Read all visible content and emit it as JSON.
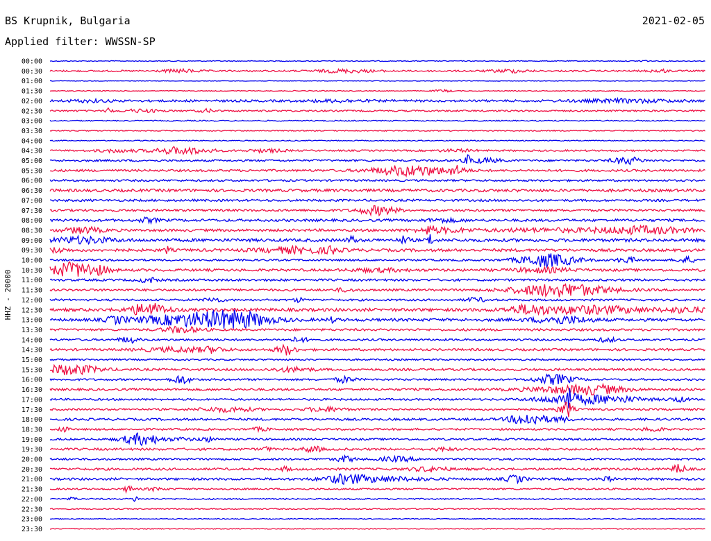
{
  "header": {
    "station": "BS Krupnik, Bulgaria",
    "filter": "Applied filter: WWSSN-SP",
    "date": "2021-02-05"
  },
  "chart_data": {
    "type": "line",
    "subtype": "helicorder",
    "ylabel": "HHZ - 20000",
    "time_labels": [
      "00:00",
      "00:30",
      "01:00",
      "01:30",
      "02:00",
      "02:30",
      "03:00",
      "03:30",
      "04:00",
      "04:30",
      "05:00",
      "05:30",
      "06:00",
      "06:30",
      "07:00",
      "07:30",
      "08:00",
      "08:30",
      "09:00",
      "09:30",
      "10:00",
      "10:30",
      "11:00",
      "11:30",
      "12:00",
      "12:30",
      "13:00",
      "13:30",
      "14:00",
      "14:30",
      "15:00",
      "15:30",
      "16:00",
      "16:30",
      "17:00",
      "17:30",
      "18:00",
      "18:30",
      "19:00",
      "19:30",
      "20:00",
      "20:30",
      "21:00",
      "21:30",
      "22:00",
      "22:30",
      "23:00",
      "23:30"
    ],
    "line_colors": [
      "#0000ee",
      "#ee1144"
    ],
    "noise": [
      0.6,
      1.2,
      0.4,
      0.6,
      1.6,
      1.2,
      0.8,
      0.8,
      0.7,
      1.2,
      1.4,
      1.6,
      1.4,
      2.0,
      1.6,
      1.6,
      1.8,
      1.8,
      2.2,
      2.0,
      1.4,
      1.8,
      1.6,
      1.6,
      1.4,
      2.2,
      2.0,
      1.6,
      1.4,
      1.6,
      1.2,
      1.6,
      1.4,
      1.6,
      1.4,
      1.4,
      1.6,
      1.4,
      1.4,
      1.6,
      1.4,
      1.6,
      1.6,
      1.2,
      1.0,
      0.8,
      0.6,
      0.6
    ],
    "events": [
      [
        [
          0.905,
          4,
          0.003
        ]
      ],
      [
        [
          0.2,
          2,
          0.02
        ],
        [
          0.45,
          2,
          0.03
        ],
        [
          0.7,
          2,
          0.02
        ],
        [
          0.93,
          2,
          0.01
        ]
      ],
      [],
      [
        [
          0.6,
          1.5,
          0.01
        ]
      ],
      [
        [
          0.06,
          1.5,
          0.02
        ],
        [
          0.44,
          1.5,
          0.03
        ],
        [
          0.88,
          2,
          0.05
        ]
      ],
      [
        [
          0.09,
          5,
          0.003
        ],
        [
          0.14,
          2,
          0.02
        ],
        [
          0.24,
          2,
          0.01
        ]
      ],
      [],
      [],
      [],
      [
        [
          0.1,
          2,
          0.02
        ],
        [
          0.2,
          5,
          0.03
        ],
        [
          0.33,
          2,
          0.02
        ],
        [
          0.62,
          1.5,
          0.02
        ]
      ],
      [
        [
          0.64,
          7,
          0.004
        ],
        [
          0.66,
          3,
          0.02
        ],
        [
          0.88,
          5,
          0.015
        ]
      ],
      [
        [
          0.55,
          7,
          0.04
        ],
        [
          0.62,
          5,
          0.01
        ]
      ],
      [],
      [],
      [],
      [
        [
          0.5,
          6,
          0.02
        ]
      ],
      [
        [
          0.15,
          3,
          0.01
        ],
        [
          0.6,
          2,
          0.02
        ]
      ],
      [
        [
          0.05,
          4,
          0.02
        ],
        [
          0.58,
          6,
          0.004
        ],
        [
          0.6,
          3,
          0.03
        ],
        [
          0.75,
          2,
          0.05
        ],
        [
          0.9,
          5,
          0.05
        ]
      ],
      [
        [
          0.05,
          4,
          0.03
        ],
        [
          0.46,
          6,
          0.004
        ],
        [
          0.54,
          5,
          0.005
        ],
        [
          0.58,
          12,
          0.002
        ]
      ],
      [
        [
          0.01,
          3,
          0.01
        ],
        [
          0.18,
          5,
          0.003
        ],
        [
          0.38,
          4,
          0.04
        ],
        [
          0.43,
          4,
          0.005
        ]
      ],
      [
        [
          0.76,
          9,
          0.03
        ],
        [
          0.88,
          4,
          0.01
        ],
        [
          0.97,
          4,
          0.01
        ]
      ],
      [
        [
          0.03,
          10,
          0.02
        ],
        [
          0.07,
          6,
          0.015
        ],
        [
          0.5,
          2,
          0.03
        ],
        [
          0.75,
          3,
          0.03
        ]
      ],
      [
        [
          0.15,
          4,
          0.008
        ]
      ],
      [
        [
          0.78,
          9,
          0.05
        ],
        [
          0.45,
          2,
          0.01
        ]
      ],
      [
        [
          0.25,
          3,
          0.01
        ],
        [
          0.38,
          3,
          0.005
        ],
        [
          0.65,
          3,
          0.01
        ]
      ],
      [
        [
          0.15,
          9,
          0.02
        ],
        [
          0.73,
          5,
          0.02
        ],
        [
          0.82,
          5,
          0.06
        ],
        [
          0.97,
          3,
          0.02
        ]
      ],
      [
        [
          0.1,
          4,
          0.01
        ],
        [
          0.23,
          9,
          0.06
        ],
        [
          0.29,
          7,
          0.03
        ],
        [
          0.43,
          3,
          0.005
        ],
        [
          0.78,
          5,
          0.03
        ]
      ],
      [
        [
          0.2,
          4,
          0.02
        ]
      ],
      [
        [
          0.12,
          4,
          0.01
        ],
        [
          0.38,
          3,
          0.01
        ],
        [
          0.85,
          3,
          0.01
        ]
      ],
      [
        [
          0.2,
          3,
          0.04
        ],
        [
          0.36,
          7,
          0.01
        ],
        [
          0.25,
          3,
          0.01
        ]
      ],
      [],
      [
        [
          0.03,
          7,
          0.03
        ],
        [
          0.37,
          3,
          0.02
        ]
      ],
      [
        [
          0.2,
          6,
          0.01
        ],
        [
          0.45,
          4,
          0.01
        ],
        [
          0.77,
          7,
          0.02
        ]
      ],
      [
        [
          0.8,
          5,
          0.05
        ],
        [
          0.84,
          3,
          0.02
        ]
      ],
      [
        [
          0.79,
          12,
          0.005
        ],
        [
          0.8,
          6,
          0.04
        ],
        [
          0.87,
          3,
          0.03
        ],
        [
          0.96,
          3,
          0.01
        ]
      ],
      [
        [
          0.27,
          3,
          0.03
        ],
        [
          0.42,
          3,
          0.02
        ],
        [
          0.78,
          3,
          0.01
        ],
        [
          0.79,
          10,
          0.005
        ]
      ],
      [
        [
          0.73,
          8,
          0.02
        ],
        [
          0.78,
          3,
          0.01
        ]
      ],
      [
        [
          0.02,
          4,
          0.005
        ],
        [
          0.32,
          2,
          0.01
        ],
        [
          0.92,
          3,
          0.01
        ]
      ],
      [
        [
          0.14,
          8,
          0.02
        ],
        [
          0.2,
          2,
          0.01
        ],
        [
          0.24,
          3,
          0.01
        ]
      ],
      [
        [
          0.33,
          3,
          0.005
        ],
        [
          0.4,
          4,
          0.01
        ],
        [
          0.6,
          2,
          0.01
        ]
      ],
      [
        [
          0.45,
          4,
          0.01
        ],
        [
          0.53,
          3,
          0.02
        ]
      ],
      [
        [
          0.36,
          3,
          0.005
        ],
        [
          0.58,
          3,
          0.02
        ],
        [
          0.96,
          8,
          0.006
        ]
      ],
      [
        [
          0.45,
          5,
          0.02
        ],
        [
          0.5,
          3,
          0.05
        ],
        [
          0.71,
          5,
          0.01
        ],
        [
          0.85,
          4,
          0.005
        ]
      ],
      [
        [
          0.12,
          6,
          0.004
        ],
        [
          0.16,
          2,
          0.01
        ]
      ],
      [
        [
          0.035,
          4,
          0.003
        ],
        [
          0.13,
          4,
          0.003
        ]
      ],
      [],
      [],
      []
    ]
  }
}
